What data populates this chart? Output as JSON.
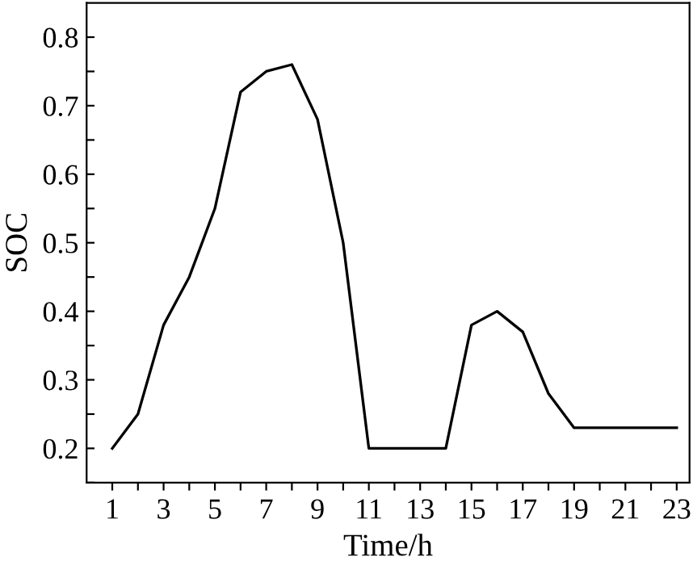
{
  "chart_data": {
    "type": "line",
    "xlabel": "Time/h",
    "ylabel": "SOC",
    "x": [
      1,
      2,
      3,
      4,
      5,
      6,
      7,
      8,
      9,
      10,
      11,
      12,
      13,
      14,
      15,
      16,
      17,
      18,
      19,
      20,
      21,
      22,
      23
    ],
    "series": [
      {
        "color": "#000000",
        "values": [
          0.2,
          0.25,
          0.38,
          0.45,
          0.55,
          0.72,
          0.75,
          0.76,
          0.68,
          0.5,
          0.2,
          0.2,
          0.2,
          0.2,
          0.38,
          0.4,
          0.37,
          0.28,
          0.23,
          0.23,
          0.23,
          0.23,
          0.23
        ]
      }
    ],
    "xlim": [
      0,
      23.5
    ],
    "xticks": [
      1,
      {
        "value": 2,
        "label": null
      },
      3,
      {
        "value": 4,
        "label": null
      },
      5,
      {
        "value": 6,
        "label": null
      },
      7,
      {
        "value": 8,
        "label": null
      },
      9,
      {
        "value": 10,
        "label": null
      },
      11,
      {
        "value": 12,
        "label": null
      },
      13,
      {
        "value": 14,
        "label": null
      },
      15,
      {
        "value": 16,
        "label": null
      },
      17,
      {
        "value": 18,
        "label": null
      },
      19,
      {
        "value": 20,
        "label": null
      },
      21,
      {
        "value": 22,
        "label": null
      },
      23
    ],
    "ylim": [
      0.15,
      0.85
    ],
    "yticks": [
      {
        "value": 0.15,
        "label": null
      },
      0.2,
      {
        "value": 0.25,
        "label": null
      },
      0.3,
      {
        "value": 0.35,
        "label": null
      },
      0.4,
      {
        "value": 0.45,
        "label": null
      },
      0.5,
      {
        "value": 0.55,
        "label": null
      },
      0.6,
      {
        "value": 0.65,
        "label": null
      },
      0.7,
      {
        "value": 0.75,
        "label": null
      },
      0.8
    ],
    "grid": false,
    "legend": false,
    "marker": "none",
    "line_style": "solid"
  }
}
